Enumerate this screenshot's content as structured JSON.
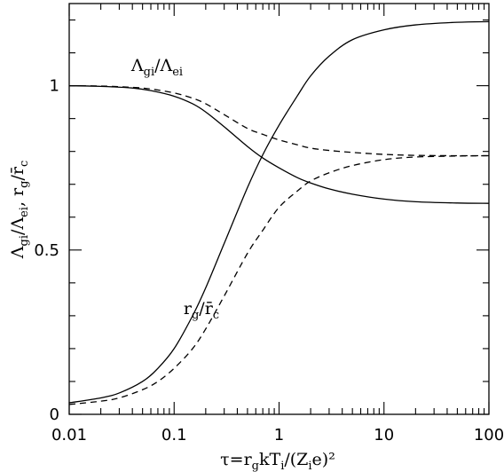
{
  "chart_data": {
    "type": "line",
    "xscale": "log",
    "xlim": [
      0.01,
      100
    ],
    "ylim": [
      0,
      1.25
    ],
    "grid": false,
    "xlabel": "τ=r_g kT_i/(Z_i e)²",
    "ylabel": "Λ_gi/Λ_ei, r_g/r̄_c",
    "x_ticks": [
      {
        "value": 0.01,
        "label": "0.01"
      },
      {
        "value": 0.1,
        "label": "0.1"
      },
      {
        "value": 1,
        "label": "1"
      },
      {
        "value": 10,
        "label": "10"
      },
      {
        "value": 100,
        "label": "100"
      }
    ],
    "y_ticks": [
      {
        "value": 0,
        "label": "0"
      },
      {
        "value": 0.5,
        "label": "0.5"
      },
      {
        "value": 1,
        "label": "1"
      }
    ],
    "series": [
      {
        "id": "lambda_solid",
        "style": "solid",
        "x": [
          0.01,
          0.02,
          0.04,
          0.06,
          0.1,
          0.15,
          0.2,
          0.3,
          0.5,
          0.7,
          1,
          1.5,
          2,
          3,
          5,
          10,
          20,
          50,
          100
        ],
        "y": [
          1.0,
          0.998,
          0.993,
          0.985,
          0.968,
          0.945,
          0.92,
          0.875,
          0.815,
          0.78,
          0.75,
          0.72,
          0.704,
          0.686,
          0.67,
          0.655,
          0.647,
          0.643,
          0.642
        ]
      },
      {
        "id": "lambda_dashed",
        "style": "dashed",
        "x": [
          0.01,
          0.02,
          0.04,
          0.06,
          0.1,
          0.15,
          0.2,
          0.3,
          0.5,
          0.7,
          1,
          1.5,
          2,
          3,
          5,
          10,
          20,
          50,
          100
        ],
        "y": [
          1.0,
          0.999,
          0.995,
          0.99,
          0.978,
          0.962,
          0.945,
          0.912,
          0.87,
          0.852,
          0.835,
          0.82,
          0.81,
          0.803,
          0.797,
          0.791,
          0.788,
          0.787,
          0.787
        ]
      },
      {
        "id": "r_solid",
        "style": "solid",
        "x": [
          0.01,
          0.02,
          0.03,
          0.05,
          0.07,
          0.1,
          0.15,
          0.2,
          0.3,
          0.5,
          0.7,
          1,
          1.5,
          2,
          3,
          5,
          10,
          20,
          50,
          100
        ],
        "y": [
          0.035,
          0.05,
          0.065,
          0.1,
          0.14,
          0.2,
          0.3,
          0.385,
          0.52,
          0.69,
          0.79,
          0.88,
          0.97,
          1.03,
          1.09,
          1.14,
          1.17,
          1.185,
          1.193,
          1.195
        ]
      },
      {
        "id": "r_dashed",
        "style": "dashed",
        "x": [
          0.01,
          0.02,
          0.03,
          0.05,
          0.07,
          0.1,
          0.15,
          0.2,
          0.3,
          0.5,
          0.7,
          1,
          1.5,
          2,
          3,
          5,
          10,
          20,
          50,
          100
        ],
        "y": [
          0.03,
          0.04,
          0.05,
          0.075,
          0.1,
          0.14,
          0.2,
          0.26,
          0.36,
          0.49,
          0.56,
          0.63,
          0.68,
          0.71,
          0.735,
          0.757,
          0.775,
          0.783,
          0.786,
          0.787
        ]
      }
    ],
    "annotations": [
      {
        "id": "lambda",
        "text": "Λ_gi/Λ_ei",
        "x": 0.039,
        "y": 1.045
      },
      {
        "id": "radius",
        "text": "r_g/r̄_c",
        "x": 0.123,
        "y": 0.305
      }
    ]
  }
}
